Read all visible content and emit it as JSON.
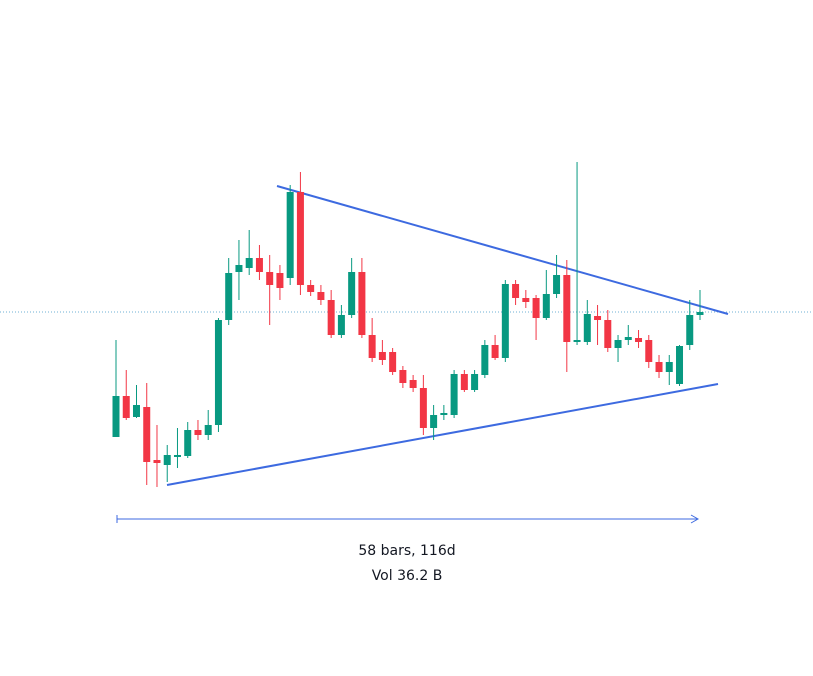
{
  "chart_data": {
    "type": "candlestick",
    "open": [
      239,
      280,
      259,
      269,
      216,
      211,
      219,
      220,
      246,
      241,
      251,
      356,
      404,
      408,
      418,
      404,
      403,
      398,
      484,
      391,
      384,
      376,
      341,
      361,
      404,
      341,
      324,
      324,
      306,
      296,
      288,
      248,
      261,
      261,
      302,
      286,
      301,
      331,
      318,
      392,
      378,
      378,
      358,
      382,
      401,
      334,
      334,
      360,
      356,
      328,
      336,
      338,
      336,
      314,
      304,
      292,
      331,
      361
    ],
    "high": [
      336,
      306,
      291,
      293,
      251,
      231,
      248,
      254,
      256,
      266,
      358,
      418,
      436,
      446,
      431,
      421,
      411,
      491,
      504,
      396,
      391,
      386,
      371,
      418,
      418,
      358,
      336,
      328,
      310,
      301,
      301,
      271,
      271,
      306,
      306,
      306,
      336,
      341,
      396,
      396,
      386,
      381,
      406,
      421,
      416,
      514,
      376,
      371,
      366,
      341,
      351,
      346,
      341,
      321,
      321,
      331,
      376,
      386
    ],
    "low": [
      239,
      256,
      258,
      191,
      189,
      194,
      208,
      218,
      236,
      236,
      244,
      351,
      376,
      401,
      396,
      351,
      376,
      391,
      381,
      380,
      371,
      338,
      338,
      358,
      338,
      314,
      311,
      301,
      288,
      284,
      241,
      236,
      256,
      258,
      284,
      284,
      298,
      316,
      314,
      371,
      368,
      336,
      356,
      378,
      304,
      331,
      331,
      331,
      324,
      314,
      331,
      328,
      308,
      298,
      291,
      290,
      326,
      356
    ],
    "close": [
      280,
      258,
      271,
      214,
      213,
      221,
      221,
      246,
      241,
      251,
      356,
      403,
      411,
      418,
      404,
      391,
      388,
      484,
      391,
      384,
      376,
      341,
      361,
      404,
      341,
      318,
      316,
      304,
      293,
      288,
      248,
      261,
      263,
      302,
      286,
      302,
      331,
      318,
      392,
      378,
      374,
      358,
      382,
      401,
      334,
      336,
      362,
      356,
      328,
      336,
      339,
      334,
      314,
      304,
      314,
      330,
      361,
      364
    ],
    "up_color": "#089981",
    "down_color": "#f23645",
    "ylim": [
      0,
      676
    ],
    "measure_bars": "58 bars, 116d",
    "measure_volume": "Vol 36.2 B"
  }
}
